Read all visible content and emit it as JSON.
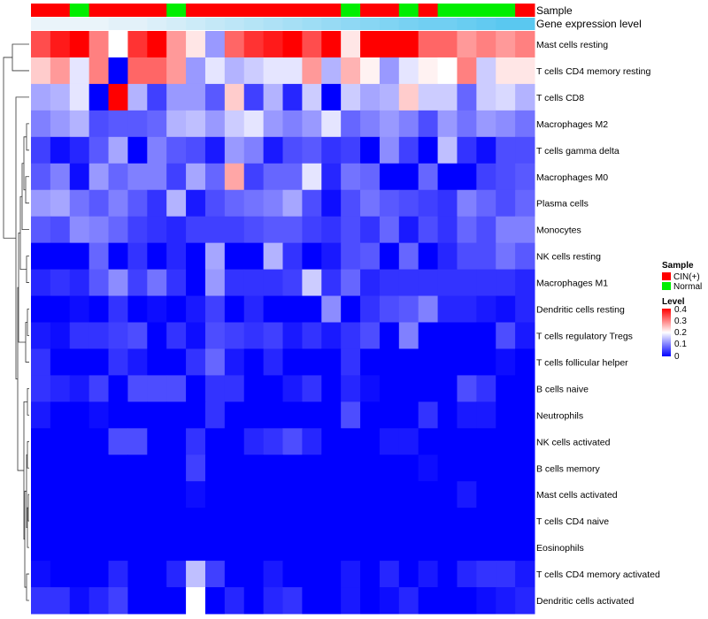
{
  "chart_data": {
    "type": "heatmap",
    "title": "",
    "annotations": {
      "sample_label": "Sample",
      "expression_label": "Gene expression level",
      "samples": [
        "CIN(+)",
        "CIN(+)",
        "Normal",
        "CIN(+)",
        "CIN(+)",
        "CIN(+)",
        "CIN(+)",
        "Normal",
        "CIN(+)",
        "CIN(+)",
        "CIN(+)",
        "CIN(+)",
        "CIN(+)",
        "CIN(+)",
        "CIN(+)",
        "CIN(+)",
        "Normal",
        "CIN(+)",
        "CIN(+)",
        "Normal",
        "CIN(+)",
        "Normal",
        "Normal",
        "Normal",
        "Normal",
        "CIN(+)"
      ],
      "expression_shade": [
        0.05,
        0.05,
        0.05,
        0.05,
        0.1,
        0.1,
        0.15,
        0.2,
        0.25,
        0.3,
        0.35,
        0.4,
        0.45,
        0.5,
        0.55,
        0.6,
        0.65,
        0.7,
        0.75,
        0.8,
        0.85,
        0.85,
        0.9,
        0.95,
        1.0,
        1.0
      ]
    },
    "rows": [
      "Mast cells resting",
      "T cells CD4 memory resting",
      "T cells CD8",
      "Macrophages M2",
      "T cells gamma delta",
      "Macrophages M0",
      "Plasma cells",
      "Monocytes",
      "NK cells resting",
      "Macrophages M1",
      "Dendritic cells resting",
      "T cells regulatory  Tregs",
      "T cells follicular helper",
      "B cells naive",
      "Neutrophils",
      "NK cells activated",
      "B cells memory",
      "Mast cells activated",
      "T cells CD4 naive",
      "Eosinophils",
      "T cells CD4 memory activated",
      "Dendritic cells activated"
    ],
    "matrix": [
      [
        0.34,
        0.38,
        0.4,
        0.3,
        0.2,
        0.36,
        0.4,
        0.28,
        0.22,
        0.12,
        0.32,
        0.36,
        0.38,
        0.4,
        0.34,
        0.4,
        0.22,
        0.4,
        0.4,
        0.4,
        0.32,
        0.32,
        0.28,
        0.3,
        0.28,
        0.3
      ],
      [
        0.24,
        0.28,
        0.18,
        0.3,
        0.0,
        0.32,
        0.32,
        0.28,
        0.12,
        0.18,
        0.14,
        0.16,
        0.18,
        0.18,
        0.28,
        0.14,
        0.26,
        0.21,
        0.12,
        0.18,
        0.21,
        0.2,
        0.3,
        0.16,
        0.22,
        0.22
      ],
      [
        0.13,
        0.14,
        0.18,
        0.0,
        0.4,
        0.14,
        0.05,
        0.12,
        0.12,
        0.07,
        0.24,
        0.05,
        0.14,
        0.03,
        0.16,
        0.0,
        0.16,
        0.13,
        0.14,
        0.24,
        0.16,
        0.16,
        0.08,
        0.16,
        0.17,
        0.14
      ],
      [
        0.1,
        0.12,
        0.14,
        0.06,
        0.07,
        0.07,
        0.08,
        0.14,
        0.15,
        0.12,
        0.16,
        0.18,
        0.12,
        0.1,
        0.12,
        0.18,
        0.08,
        0.1,
        0.12,
        0.1,
        0.06,
        0.12,
        0.09,
        0.12,
        0.11,
        0.09
      ],
      [
        0.05,
        0.01,
        0.03,
        0.07,
        0.13,
        0.0,
        0.1,
        0.07,
        0.06,
        0.02,
        0.12,
        0.1,
        0.02,
        0.06,
        0.07,
        0.04,
        0.05,
        0.0,
        0.11,
        0.05,
        0.0,
        0.15,
        0.04,
        0.01,
        0.06,
        0.06
      ],
      [
        0.07,
        0.1,
        0.01,
        0.12,
        0.08,
        0.1,
        0.1,
        0.05,
        0.13,
        0.08,
        0.27,
        0.05,
        0.08,
        0.08,
        0.18,
        0.03,
        0.09,
        0.08,
        0.0,
        0.0,
        0.08,
        0.0,
        0.0,
        0.05,
        0.06,
        0.07
      ],
      [
        0.12,
        0.13,
        0.09,
        0.07,
        0.1,
        0.07,
        0.04,
        0.14,
        0.02,
        0.06,
        0.08,
        0.09,
        0.1,
        0.13,
        0.06,
        0.01,
        0.06,
        0.09,
        0.07,
        0.06,
        0.05,
        0.04,
        0.1,
        0.08,
        0.06,
        0.08
      ],
      [
        0.07,
        0.06,
        0.11,
        0.1,
        0.08,
        0.05,
        0.04,
        0.03,
        0.05,
        0.05,
        0.05,
        0.06,
        0.07,
        0.07,
        0.05,
        0.04,
        0.06,
        0.04,
        0.08,
        0.02,
        0.06,
        0.04,
        0.08,
        0.06,
        0.1,
        0.1
      ],
      [
        0.0,
        0.0,
        0.0,
        0.08,
        0.0,
        0.04,
        0.0,
        0.03,
        0.0,
        0.13,
        0.0,
        0.0,
        0.14,
        0.04,
        0.0,
        0.02,
        0.06,
        0.07,
        0.0,
        0.08,
        0.0,
        0.03,
        0.06,
        0.06,
        0.09,
        0.07
      ],
      [
        0.03,
        0.04,
        0.03,
        0.07,
        0.11,
        0.05,
        0.09,
        0.04,
        0.0,
        0.12,
        0.04,
        0.04,
        0.04,
        0.05,
        0.16,
        0.04,
        0.08,
        0.03,
        0.04,
        0.04,
        0.04,
        0.04,
        0.04,
        0.04,
        0.04,
        0.03
      ],
      [
        0.0,
        0.0,
        0.01,
        0.0,
        0.04,
        0.0,
        0.01,
        0.0,
        0.02,
        0.05,
        0.0,
        0.03,
        0.0,
        0.0,
        0.0,
        0.11,
        0.0,
        0.04,
        0.06,
        0.07,
        0.1,
        0.03,
        0.03,
        0.02,
        0.01,
        0.03
      ],
      [
        0.02,
        0.01,
        0.04,
        0.04,
        0.05,
        0.06,
        0.0,
        0.04,
        0.01,
        0.06,
        0.05,
        0.04,
        0.05,
        0.02,
        0.04,
        0.02,
        0.04,
        0.06,
        0.0,
        0.1,
        0.0,
        0.0,
        0.0,
        0.0,
        0.06,
        0.02
      ],
      [
        0.04,
        0.0,
        0.0,
        0.0,
        0.04,
        0.02,
        0.0,
        0.0,
        0.04,
        0.08,
        0.02,
        0.0,
        0.03,
        0.0,
        0.0,
        0.0,
        0.04,
        0.0,
        0.0,
        0.0,
        0.0,
        0.0,
        0.0,
        0.0,
        0.01,
        0.0
      ],
      [
        0.04,
        0.03,
        0.02,
        0.05,
        0.0,
        0.06,
        0.06,
        0.06,
        0.0,
        0.04,
        0.04,
        0.0,
        0.0,
        0.02,
        0.04,
        0.0,
        0.03,
        0.01,
        0.0,
        0.0,
        0.0,
        0.0,
        0.06,
        0.04,
        0.0,
        0.0
      ],
      [
        0.02,
        0.0,
        0.0,
        0.01,
        0.0,
        0.0,
        0.0,
        0.0,
        0.0,
        0.04,
        0.0,
        0.0,
        0.0,
        0.0,
        0.0,
        0.0,
        0.06,
        0.0,
        0.0,
        0.0,
        0.04,
        0.0,
        0.02,
        0.02,
        0.0,
        0.0
      ],
      [
        0.0,
        0.0,
        0.0,
        0.0,
        0.06,
        0.06,
        0.0,
        0.0,
        0.04,
        0.0,
        0.0,
        0.03,
        0.04,
        0.06,
        0.03,
        0.0,
        0.0,
        0.0,
        0.02,
        0.02,
        0.0,
        0.0,
        0.0,
        0.0,
        0.0,
        0.0
      ],
      [
        0.0,
        0.0,
        0.0,
        0.0,
        0.0,
        0.0,
        0.0,
        0.0,
        0.05,
        0.0,
        0.0,
        0.0,
        0.0,
        0.0,
        0.0,
        0.0,
        0.0,
        0.0,
        0.0,
        0.0,
        0.01,
        0.0,
        0.0,
        0.0,
        0.0,
        0.0
      ],
      [
        0.0,
        0.0,
        0.0,
        0.0,
        0.0,
        0.0,
        0.0,
        0.0,
        0.01,
        0.0,
        0.0,
        0.0,
        0.0,
        0.0,
        0.0,
        0.0,
        0.0,
        0.0,
        0.0,
        0.0,
        0.0,
        0.0,
        0.02,
        0.0,
        0.0,
        0.0
      ],
      [
        0.0,
        0.0,
        0.0,
        0.0,
        0.0,
        0.0,
        0.0,
        0.0,
        0.0,
        0.0,
        0.0,
        0.0,
        0.0,
        0.0,
        0.0,
        0.0,
        0.0,
        0.0,
        0.0,
        0.0,
        0.0,
        0.0,
        0.0,
        0.0,
        0.0,
        0.0
      ],
      [
        0.0,
        0.0,
        0.0,
        0.0,
        0.0,
        0.0,
        0.0,
        0.0,
        0.0,
        0.0,
        0.0,
        0.0,
        0.0,
        0.0,
        0.0,
        0.0,
        0.0,
        0.0,
        0.0,
        0.0,
        0.0,
        0.0,
        0.0,
        0.0,
        0.0,
        0.0
      ],
      [
        0.01,
        0.0,
        0.0,
        0.0,
        0.03,
        0.0,
        0.0,
        0.03,
        0.15,
        0.05,
        0.0,
        0.0,
        0.02,
        0.0,
        0.0,
        0.0,
        0.02,
        0.0,
        0.03,
        0.0,
        0.02,
        0.0,
        0.03,
        0.04,
        0.04,
        0.02
      ],
      [
        0.04,
        0.04,
        0.01,
        0.03,
        0.05,
        0.0,
        0.0,
        0.0,
        0.2,
        0.0,
        0.03,
        0.0,
        0.03,
        0.04,
        0.0,
        0.0,
        0.02,
        0.0,
        0.01,
        0.03,
        0.0,
        0.0,
        0.0,
        0.01,
        0.02,
        0.03
      ]
    ],
    "legend": {
      "sample_title": "Sample",
      "sample_items": [
        {
          "label": "CIN(+)",
          "color": "#ff0000"
        },
        {
          "label": "Normal",
          "color": "#00ee00"
        }
      ],
      "level_title": "Level",
      "level_ticks": [
        "0.4",
        "0.3",
        "0.2",
        "0.1",
        "0"
      ],
      "range": [
        0,
        0.4
      ],
      "colors": {
        "low": "#0000ff",
        "mid": "#ffffff",
        "high": "#ff0000"
      }
    }
  }
}
